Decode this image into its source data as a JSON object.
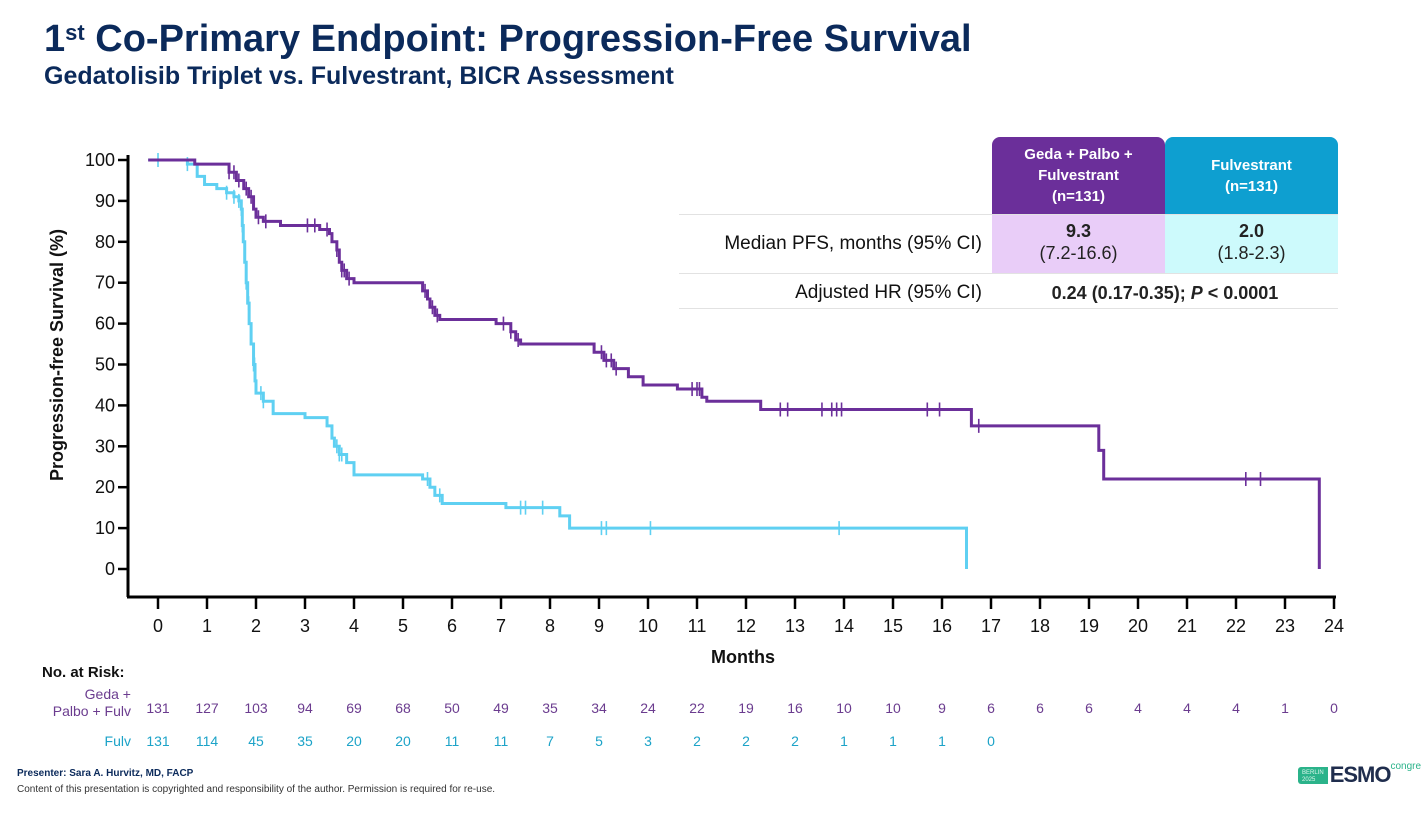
{
  "header": {
    "title_prefix": "1",
    "title_sup": "st",
    "title_rest": " Co-Primary Endpoint: Progression-Free Survival",
    "subtitle": "Gedatolisib Triplet vs. Fulvestrant, BICR Assessment"
  },
  "colors": {
    "title": "#0b2a5b",
    "geda": "#6b2f9a",
    "fulv": "#5fd0f2",
    "geda_header_bg": "#6b2f9a",
    "fulv_header_bg": "#0e9fd0",
    "geda_cell_bg": "#e9cdf8",
    "fulv_cell_bg": "#cdfafc",
    "risk_geda": "#6b3c8f",
    "risk_fulv": "#1ca3c8"
  },
  "summary_table": {
    "columns": [
      {
        "label_lines": [
          "Geda + Palbo +",
          "Fulvestrant",
          "(n=131)"
        ]
      },
      {
        "label_lines": [
          "Fulvestrant",
          "(n=131)"
        ]
      }
    ],
    "rows": [
      {
        "label": "Median PFS, months (95% CI)",
        "geda_main": "9.3",
        "geda_ci": "(7.2-16.6)",
        "fulv_main": "2.0",
        "fulv_ci": "(1.8-2.3)"
      },
      {
        "label": "Adjusted HR (95% CI)",
        "value_main": "0.24 (0.17-0.35); ",
        "value_p_label": "P",
        "value_p_rest": " < 0.0001"
      }
    ]
  },
  "chart_data": {
    "type": "line",
    "subtype": "kaplan-meier step",
    "title": "1st Co-Primary Endpoint: Progression-Free Survival",
    "xlabel": "Months",
    "ylabel": "Progression-free Survival (%)",
    "xlim": [
      0,
      24
    ],
    "ylim": [
      0,
      100
    ],
    "x_ticks": [
      "0",
      "1",
      "2",
      "3",
      "4",
      "5",
      "6",
      "7",
      "8",
      "9",
      "10",
      "11",
      "12",
      "13",
      "14",
      "15",
      "16",
      "17",
      "18",
      "19",
      "20",
      "21",
      "22",
      "23",
      "24"
    ],
    "y_ticks": [
      "0",
      "10",
      "20",
      "30",
      "40",
      "50",
      "60",
      "70",
      "80",
      "90",
      "100"
    ],
    "grid": false,
    "series": [
      {
        "name": "Geda + Palbo + Fulv",
        "steps": [
          [
            0,
            100
          ],
          [
            0.75,
            99
          ],
          [
            1.45,
            97
          ],
          [
            1.6,
            95
          ],
          [
            1.75,
            93
          ],
          [
            1.85,
            91
          ],
          [
            1.95,
            88
          ],
          [
            2.0,
            86
          ],
          [
            2.15,
            85
          ],
          [
            2.5,
            84
          ],
          [
            3.3,
            83
          ],
          [
            3.5,
            82
          ],
          [
            3.55,
            80
          ],
          [
            3.65,
            78
          ],
          [
            3.7,
            75
          ],
          [
            3.75,
            73
          ],
          [
            3.85,
            71
          ],
          [
            4.0,
            70
          ],
          [
            5.4,
            68
          ],
          [
            5.5,
            66
          ],
          [
            5.55,
            64
          ],
          [
            5.65,
            62
          ],
          [
            5.75,
            61
          ],
          [
            6.9,
            60
          ],
          [
            7.2,
            58
          ],
          [
            7.3,
            56
          ],
          [
            7.4,
            55
          ],
          [
            8.9,
            53
          ],
          [
            9.1,
            51
          ],
          [
            9.3,
            49
          ],
          [
            9.6,
            47
          ],
          [
            9.9,
            45
          ],
          [
            10.6,
            44
          ],
          [
            11.1,
            42
          ],
          [
            11.2,
            41
          ],
          [
            12.3,
            39
          ],
          [
            16.6,
            35
          ],
          [
            19.2,
            29
          ],
          [
            19.3,
            22
          ],
          [
            23.7,
            0
          ]
        ],
        "censor_times": [
          1.45,
          1.55,
          1.65,
          1.8,
          1.9,
          2.05,
          2.2,
          3.05,
          3.2,
          3.45,
          3.65,
          3.75,
          3.8,
          3.9,
          5.45,
          5.6,
          5.7,
          7.05,
          7.2,
          7.35,
          9.05,
          9.15,
          9.25,
          9.35,
          10.9,
          11.0,
          11.05,
          12.7,
          12.85,
          13.55,
          13.75,
          13.85,
          13.95,
          15.7,
          15.95,
          16.75,
          22.2,
          22.5
        ],
        "final_time": 23.75
      },
      {
        "name": "Fulv",
        "steps": [
          [
            0,
            100
          ],
          [
            0.6,
            99
          ],
          [
            0.8,
            96
          ],
          [
            0.95,
            94
          ],
          [
            1.2,
            93
          ],
          [
            1.4,
            92
          ],
          [
            1.55,
            91
          ],
          [
            1.65,
            90
          ],
          [
            1.7,
            88
          ],
          [
            1.72,
            84
          ],
          [
            1.74,
            80
          ],
          [
            1.77,
            75
          ],
          [
            1.8,
            70
          ],
          [
            1.83,
            65
          ],
          [
            1.86,
            60
          ],
          [
            1.9,
            55
          ],
          [
            1.95,
            50
          ],
          [
            1.98,
            46
          ],
          [
            2.0,
            43
          ],
          [
            2.15,
            41
          ],
          [
            2.35,
            38
          ],
          [
            3.0,
            37
          ],
          [
            3.45,
            35
          ],
          [
            3.55,
            32
          ],
          [
            3.6,
            30
          ],
          [
            3.7,
            28
          ],
          [
            3.85,
            26
          ],
          [
            4.0,
            23
          ],
          [
            5.4,
            22
          ],
          [
            5.55,
            20
          ],
          [
            5.65,
            18
          ],
          [
            5.8,
            16
          ],
          [
            7.1,
            15
          ],
          [
            8.2,
            13
          ],
          [
            8.4,
            10
          ],
          [
            16.5,
            0
          ]
        ],
        "censor_times": [
          0.0,
          0.6,
          1.4,
          1.55,
          1.65,
          1.7,
          1.72,
          1.8,
          1.85,
          1.95,
          1.97,
          2.1,
          2.15,
          3.65,
          3.7,
          3.75,
          5.5,
          5.75,
          7.4,
          7.5,
          7.85,
          9.05,
          9.15,
          10.05,
          13.9
        ],
        "final_time": 16.5
      }
    ],
    "number_at_risk": {
      "title": "No. at Risk:",
      "times": [
        0,
        1,
        2,
        3,
        4,
        5,
        6,
        7,
        8,
        9,
        10,
        11,
        12,
        13,
        14,
        15,
        16,
        17,
        18,
        19,
        20,
        21,
        22,
        23,
        24
      ],
      "rows": [
        {
          "label_lines": [
            "Geda +",
            "Palbo + Fulv"
          ],
          "values": [
            "131",
            "127",
            "103",
            "94",
            "69",
            "68",
            "50",
            "49",
            "35",
            "34",
            "24",
            "22",
            "19",
            "16",
            "10",
            "10",
            "9",
            "6",
            "6",
            "6",
            "4",
            "4",
            "4",
            "1",
            "0"
          ]
        },
        {
          "label_lines": [
            "Fulv"
          ],
          "values": [
            "131",
            "114",
            "45",
            "35",
            "20",
            "20",
            "11",
            "11",
            "7",
            "5",
            "3",
            "2",
            "2",
            "2",
            "1",
            "1",
            "1",
            "0"
          ]
        }
      ]
    }
  },
  "footer": {
    "presenter": "Presenter: Sara A. Hurvitz, MD, FACP",
    "copyright": "Content of this presentation is copyrighted and responsibility of the author. Permission is required for re-use.",
    "logo_city": [
      "BERLIN",
      "2025"
    ],
    "logo_main": "ESMO",
    "logo_sub": "congress"
  }
}
